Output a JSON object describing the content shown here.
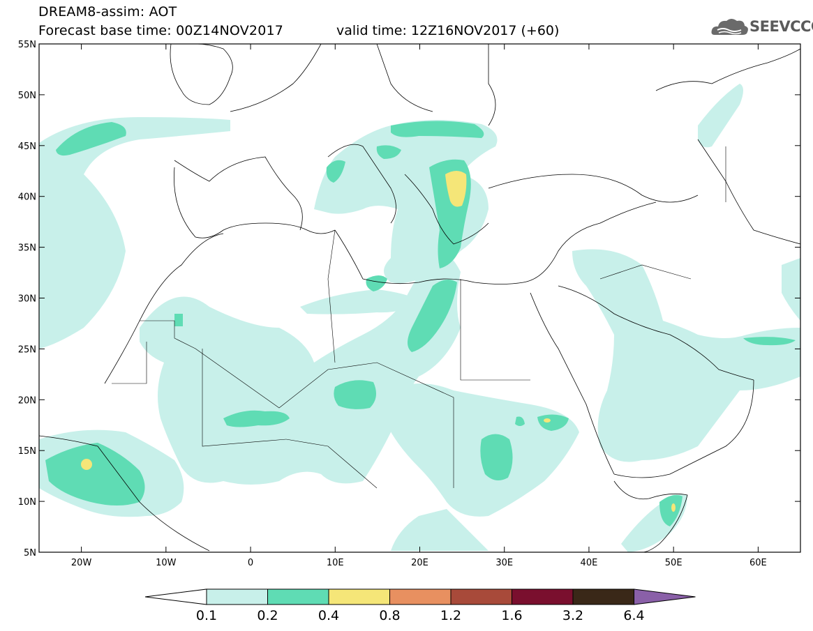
{
  "header": {
    "title": "DREAM8-assim: AOT",
    "base_time": "Forecast base time: 00Z14NOV2017",
    "valid_time": "valid time: 12Z16NOV2017 (+60)"
  },
  "logo": {
    "text": "SEEVCCC",
    "icon": "cloud-icon"
  },
  "map": {
    "lat_labels": [
      "55N",
      "50N",
      "45N",
      "40N",
      "35N",
      "30N",
      "25N",
      "20N",
      "15N",
      "10N",
      "5N"
    ],
    "lon_labels": [
      "20W",
      "10W",
      "0",
      "10E",
      "20E",
      "30E",
      "40E",
      "50E",
      "60E"
    ],
    "lon_range": [
      -25,
      65
    ],
    "lat_range": [
      5,
      55
    ]
  },
  "colorbar": {
    "levels": [
      "0.1",
      "0.2",
      "0.4",
      "0.8",
      "1.2",
      "1.6",
      "3.2",
      "6.4"
    ],
    "colors": [
      "#ffffff",
      "#c8f0ea",
      "#5fdcb4",
      "#f5e678",
      "#e89060",
      "#a84a3a",
      "#7a0f2e",
      "#3a2818",
      "#8a60a8"
    ]
  },
  "colors": {
    "aot_01": "#c8f0ea",
    "aot_02": "#5fdcb4",
    "aot_04": "#f5e678",
    "coastline": "#000000"
  }
}
